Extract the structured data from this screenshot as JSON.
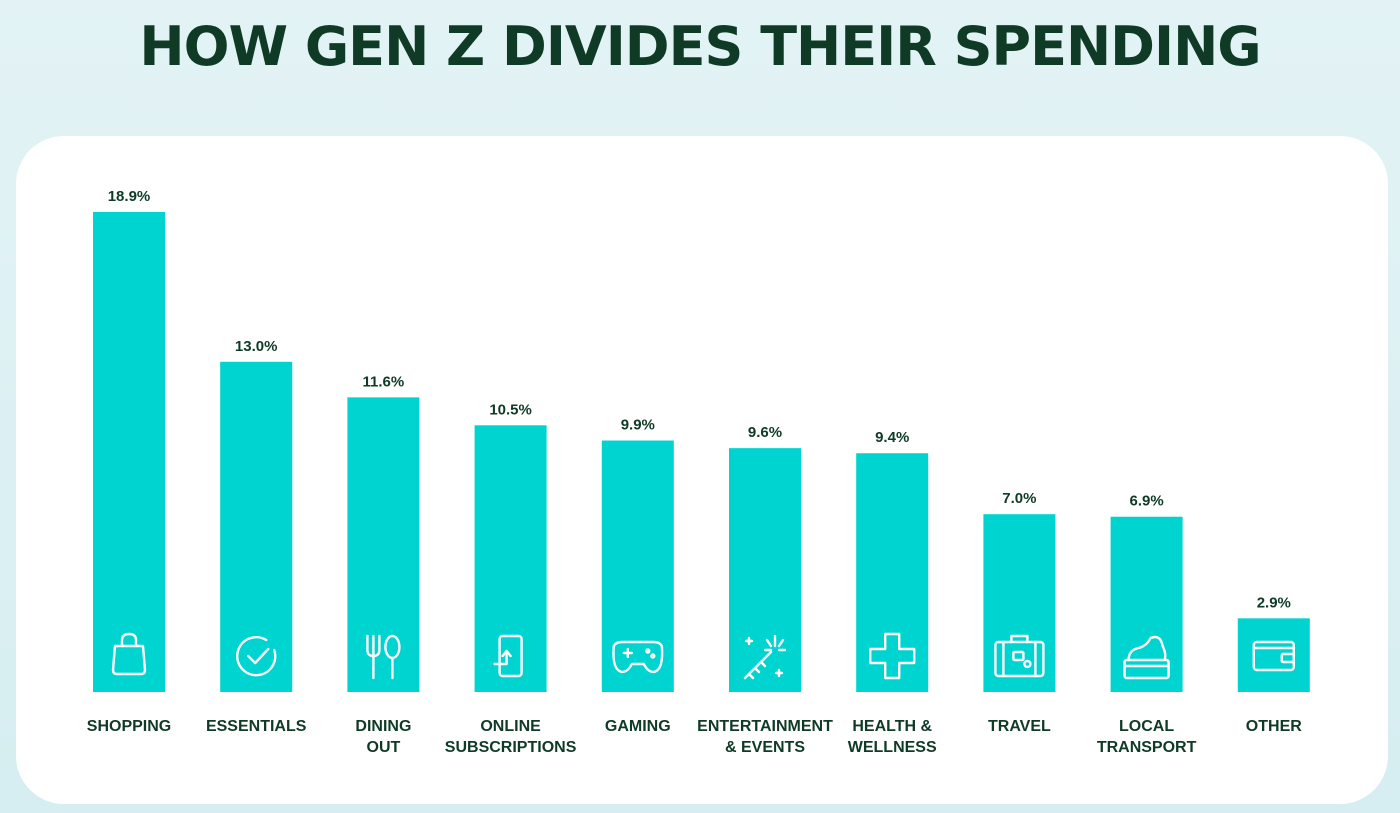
{
  "title": "HOW GEN Z DIVIDES THEIR SPENDING",
  "colors": {
    "bar": "#00d4d0",
    "text": "#0f3b26",
    "card": "#ffffff",
    "background": "#e3f3f5"
  },
  "chart_data": {
    "type": "bar",
    "title": "HOW GEN Z DIVIDES THEIR SPENDING",
    "xlabel": "",
    "ylabel": "",
    "unit": "%",
    "grid": false,
    "categories": [
      [
        "SHOPPING"
      ],
      [
        "ESSENTIALS"
      ],
      [
        "DINING",
        "OUT"
      ],
      [
        "ONLINE",
        "SUBSCRIPTIONS"
      ],
      [
        "GAMING"
      ],
      [
        "ENTERTAINMENT",
        "& EVENTS"
      ],
      [
        "HEALTH &",
        "WELLNESS"
      ],
      [
        "TRAVEL"
      ],
      [
        "LOCAL",
        "TRANSPORT"
      ],
      [
        "OTHER"
      ]
    ],
    "values": [
      18.9,
      13.0,
      11.6,
      10.5,
      9.9,
      9.6,
      9.4,
      7.0,
      6.9,
      2.9
    ],
    "value_labels": [
      "18.9%",
      "13.0%",
      "11.6%",
      "10.5%",
      "9.9%",
      "9.6%",
      "9.4%",
      "7.0%",
      "6.9%",
      "2.9%"
    ],
    "icons": [
      "shopping-bag-icon",
      "check-circle-icon",
      "fork-spoon-icon",
      "phone-subscription-icon",
      "gamepad-icon",
      "sparkler-icon",
      "health-cross-icon",
      "suitcase-icon",
      "cream-jar-icon",
      "wallet-icon"
    ]
  }
}
